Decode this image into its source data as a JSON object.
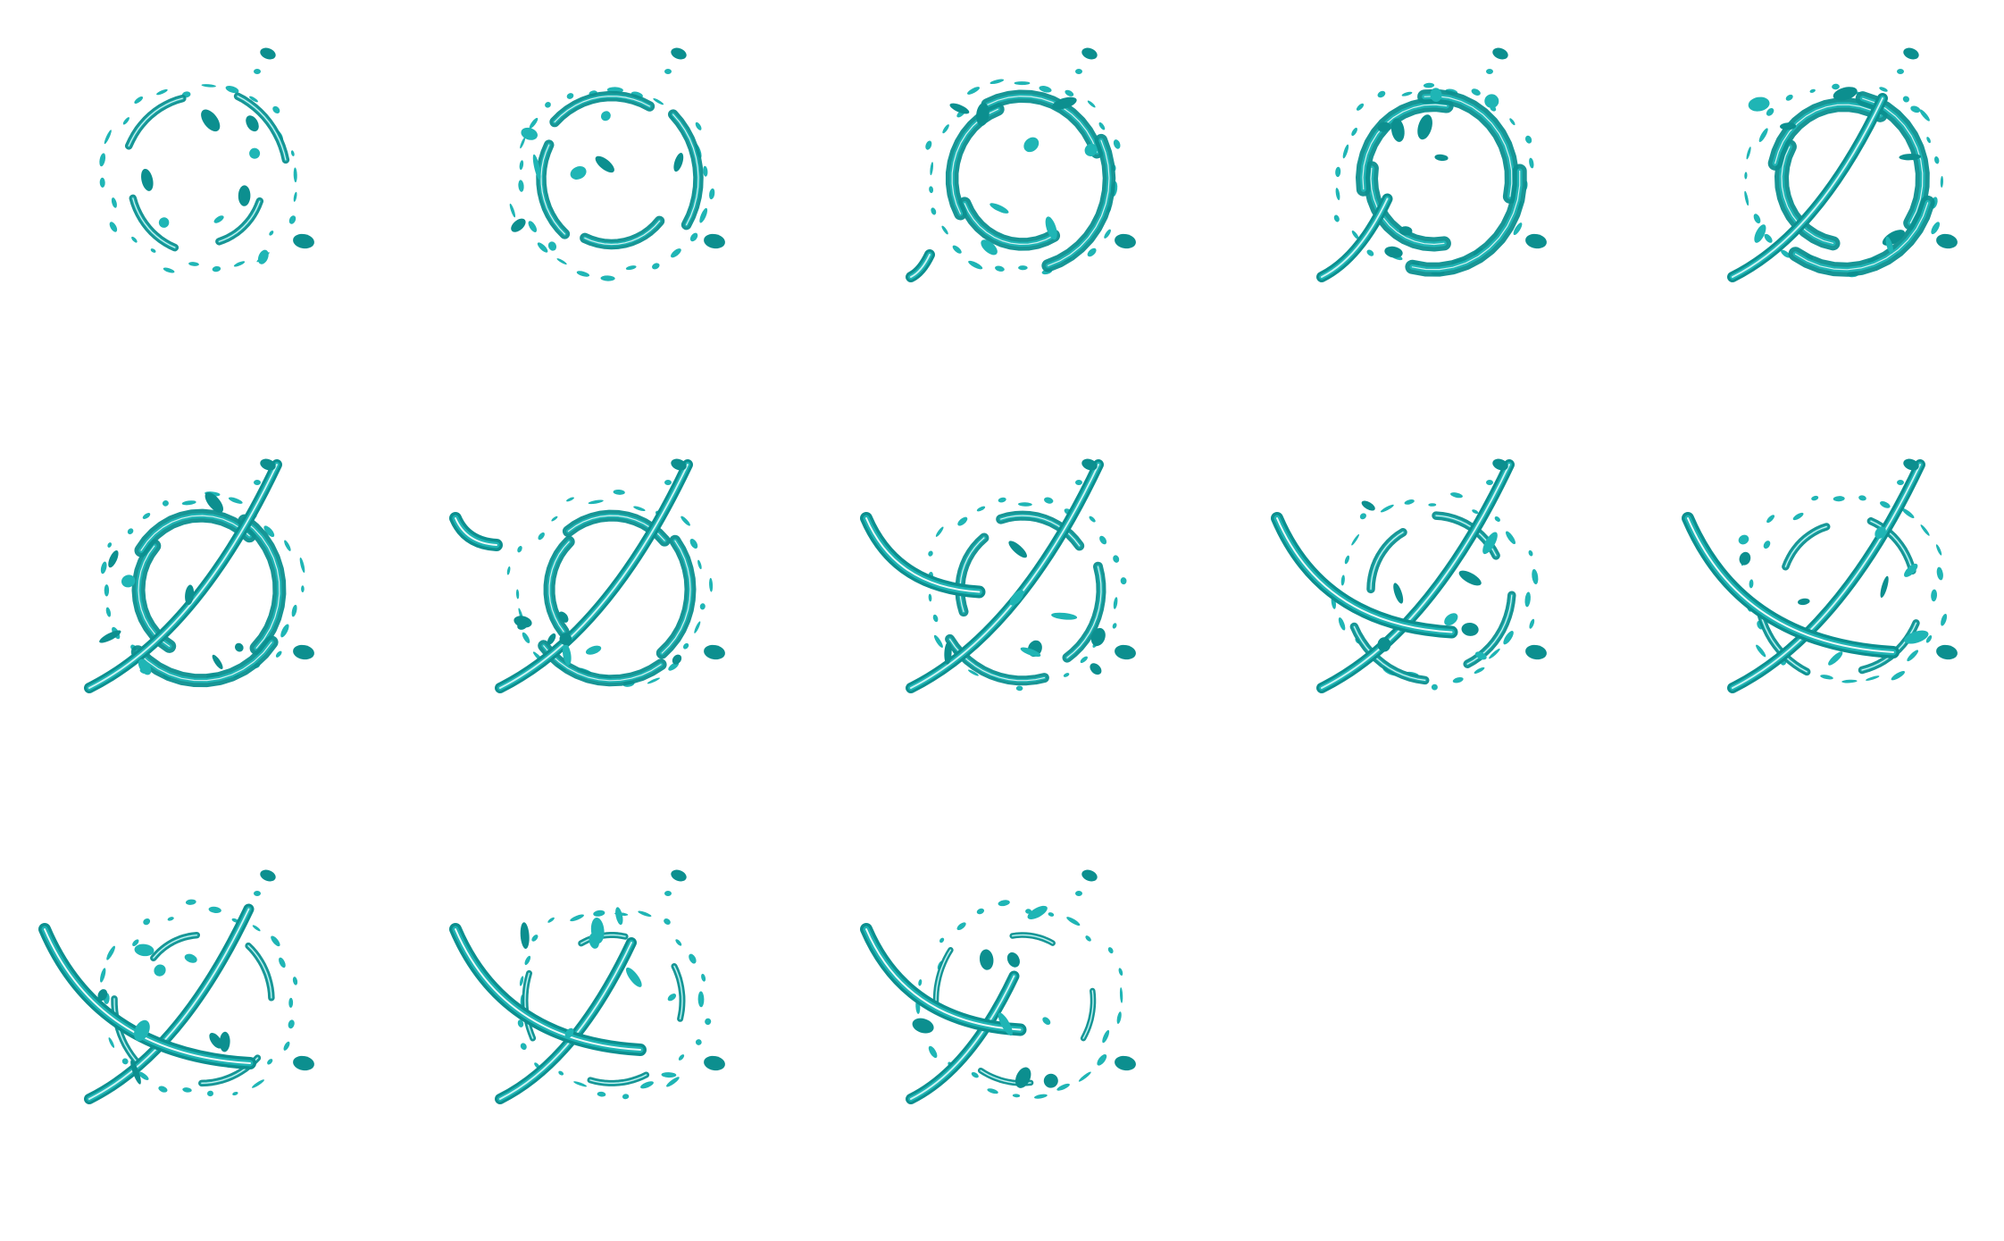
{
  "sprite_sheet": {
    "background": "#ffffff",
    "colors": {
      "fill": "#1fb5b5",
      "dark": "#0c8f8f",
      "light": "#c9f2f2",
      "highlight": "#ffffff"
    },
    "grid": {
      "columns": 5,
      "rows": 3
    },
    "frame_count": 13,
    "frames": [
      {
        "index": 1,
        "phase": "swirl-start",
        "ring": 0.25,
        "strike": 0.0,
        "cross": 0.0
      },
      {
        "index": 2,
        "phase": "swirl",
        "ring": 0.55,
        "strike": 0.0,
        "cross": 0.0
      },
      {
        "index": 3,
        "phase": "swirl",
        "ring": 0.85,
        "strike": 0.1,
        "cross": 0.0
      },
      {
        "index": 4,
        "phase": "ring",
        "ring": 1.0,
        "strike": 0.35,
        "cross": 0.0
      },
      {
        "index": 5,
        "phase": "ring-slash",
        "ring": 1.0,
        "strike": 0.8,
        "cross": 0.0
      },
      {
        "index": 6,
        "phase": "ring-slash",
        "ring": 0.9,
        "strike": 1.0,
        "cross": 0.0
      },
      {
        "index": 7,
        "phase": "break",
        "ring": 0.7,
        "strike": 1.0,
        "cross": 0.2
      },
      {
        "index": 8,
        "phase": "break",
        "ring": 0.5,
        "strike": 1.0,
        "cross": 0.55
      },
      {
        "index": 9,
        "phase": "cross",
        "ring": 0.35,
        "strike": 1.0,
        "cross": 0.85
      },
      {
        "index": 10,
        "phase": "cross",
        "ring": 0.25,
        "strike": 1.0,
        "cross": 1.0
      },
      {
        "index": 11,
        "phase": "splash",
        "ring": 0.15,
        "strike": 0.85,
        "cross": 1.0
      },
      {
        "index": 12,
        "phase": "splash",
        "ring": 0.1,
        "strike": 0.7,
        "cross": 0.9
      },
      {
        "index": 13,
        "phase": "splash-fade",
        "ring": 0.05,
        "strike": 0.55,
        "cross": 0.75
      }
    ]
  }
}
